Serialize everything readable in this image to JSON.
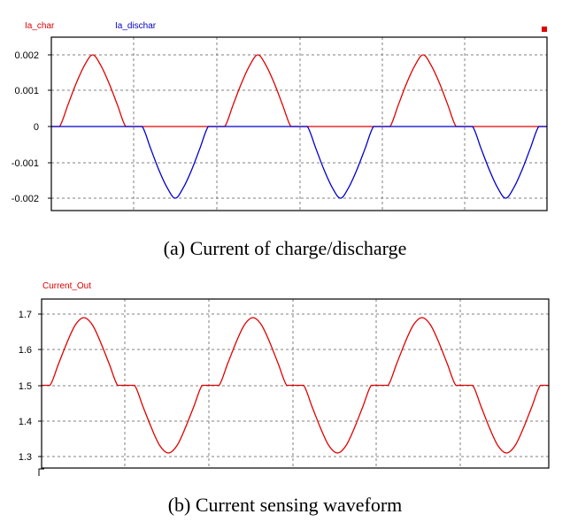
{
  "colors": {
    "red": "#e00000",
    "blue": "#0000cc",
    "grid": "#808080"
  },
  "chart_data": [
    {
      "type": "line",
      "legend": [
        "Ia_char",
        "Ia_dischar"
      ],
      "legend_placement": "top-left",
      "caption": "(a)  Current  of  charge/discharge",
      "yticks": [
        "0.002",
        "0.001",
        "0",
        "-0.001",
        "-0.002"
      ],
      "ylim": [
        -0.0024,
        0.0024
      ],
      "grid": true,
      "series": [
        {
          "name": "Ia_char",
          "color": "#e00000",
          "x": [
            0,
            0.05,
            0.1,
            0.15,
            0.2,
            0.25,
            0.3,
            0.35,
            0.4,
            0.45,
            0.5,
            0.55,
            0.6,
            0.65,
            0.7,
            0.75,
            0.8,
            0.85,
            0.9,
            0.95,
            1.0,
            1.05,
            1.1,
            1.15,
            1.2,
            1.25,
            1.3,
            1.35,
            1.4,
            1.45,
            1.5,
            1.55,
            1.6,
            1.65,
            1.7,
            1.75,
            1.8,
            1.85,
            1.9,
            1.95,
            2.0,
            2.05,
            2.1,
            2.15,
            2.2,
            2.25,
            2.3,
            2.35,
            2.4,
            2.45,
            2.5,
            2.55,
            2.6,
            2.65,
            2.7,
            2.75,
            2.8,
            2.85,
            2.9,
            2.95,
            3.0
          ],
          "values": [
            0,
            0,
            0.0006,
            0.0012,
            0.0017,
            0.002,
            0.0017,
            0.0012,
            0.0006,
            0,
            0,
            0,
            0,
            0,
            0,
            0,
            0,
            0,
            0,
            0,
            0,
            0,
            0.0006,
            0.0012,
            0.0017,
            0.002,
            0.0017,
            0.0012,
            0.0006,
            0,
            0,
            0,
            0,
            0,
            0,
            0,
            0,
            0,
            0,
            0,
            0,
            0,
            0.0006,
            0.0012,
            0.0017,
            0.002,
            0.0017,
            0.0012,
            0.0006,
            0,
            0,
            0,
            0,
            0,
            0,
            0,
            0,
            0,
            0,
            0,
            0
          ]
        },
        {
          "name": "Ia_dischar",
          "color": "#0000cc",
          "x": [
            0,
            0.05,
            0.1,
            0.15,
            0.2,
            0.25,
            0.3,
            0.35,
            0.4,
            0.45,
            0.5,
            0.55,
            0.6,
            0.65,
            0.7,
            0.75,
            0.8,
            0.85,
            0.9,
            0.95,
            1.0,
            1.05,
            1.1,
            1.15,
            1.2,
            1.25,
            1.3,
            1.35,
            1.4,
            1.45,
            1.5,
            1.55,
            1.6,
            1.65,
            1.7,
            1.75,
            1.8,
            1.85,
            1.9,
            1.95,
            2.0,
            2.05,
            2.1,
            2.15,
            2.2,
            2.25,
            2.3,
            2.35,
            2.4,
            2.45,
            2.5,
            2.55,
            2.6,
            2.65,
            2.7,
            2.75,
            2.8,
            2.85,
            2.9,
            2.95,
            3.0
          ],
          "values": [
            0,
            0,
            0,
            0,
            0,
            0,
            0,
            0,
            0,
            0,
            0,
            0,
            -0.0006,
            -0.0012,
            -0.0017,
            -0.002,
            -0.0017,
            -0.0012,
            -0.0006,
            0,
            0,
            0,
            0,
            0,
            0,
            0,
            0,
            0,
            0,
            0,
            0,
            0,
            -0.0006,
            -0.0012,
            -0.0017,
            -0.002,
            -0.0017,
            -0.0012,
            -0.0006,
            0,
            0,
            0,
            0,
            0,
            0,
            0,
            0,
            0,
            0,
            0,
            0,
            0,
            -0.0006,
            -0.0012,
            -0.0017,
            -0.002,
            -0.0017,
            -0.0012,
            -0.0006,
            0,
            0
          ]
        }
      ]
    },
    {
      "type": "line",
      "legend": [
        "Current_Out"
      ],
      "legend_placement": "top-left",
      "caption": "(b)  Current  sensing  waveform",
      "yticks": [
        "1.7",
        "1.6",
        "1.5",
        "1.4",
        "1.3"
      ],
      "ylim": [
        1.28,
        1.74
      ],
      "grid": true,
      "series": [
        {
          "name": "Current_Out",
          "color": "#e00000",
          "x": [
            0,
            0.05,
            0.1,
            0.15,
            0.2,
            0.25,
            0.3,
            0.35,
            0.4,
            0.45,
            0.5,
            0.55,
            0.6,
            0.65,
            0.7,
            0.75,
            0.8,
            0.85,
            0.9,
            0.95,
            1.0,
            1.05,
            1.1,
            1.15,
            1.2,
            1.25,
            1.3,
            1.35,
            1.4,
            1.45,
            1.5,
            1.55,
            1.6,
            1.65,
            1.7,
            1.75,
            1.8,
            1.85,
            1.9,
            1.95,
            2.0,
            2.05,
            2.1,
            2.15,
            2.2,
            2.25,
            2.3,
            2.35,
            2.4,
            2.45,
            2.5,
            2.55,
            2.6,
            2.65,
            2.7,
            2.75,
            2.8,
            2.85,
            2.9,
            2.95,
            3.0
          ],
          "values": [
            1.5,
            1.5,
            1.56,
            1.62,
            1.67,
            1.69,
            1.67,
            1.62,
            1.56,
            1.5,
            1.5,
            1.5,
            1.44,
            1.38,
            1.33,
            1.31,
            1.33,
            1.38,
            1.44,
            1.5,
            1.5,
            1.5,
            1.56,
            1.62,
            1.67,
            1.69,
            1.67,
            1.62,
            1.56,
            1.5,
            1.5,
            1.5,
            1.44,
            1.38,
            1.33,
            1.31,
            1.33,
            1.38,
            1.44,
            1.5,
            1.5,
            1.5,
            1.56,
            1.62,
            1.67,
            1.69,
            1.67,
            1.62,
            1.56,
            1.5,
            1.5,
            1.5,
            1.44,
            1.38,
            1.33,
            1.31,
            1.33,
            1.38,
            1.44,
            1.5,
            1.5
          ]
        }
      ]
    }
  ]
}
